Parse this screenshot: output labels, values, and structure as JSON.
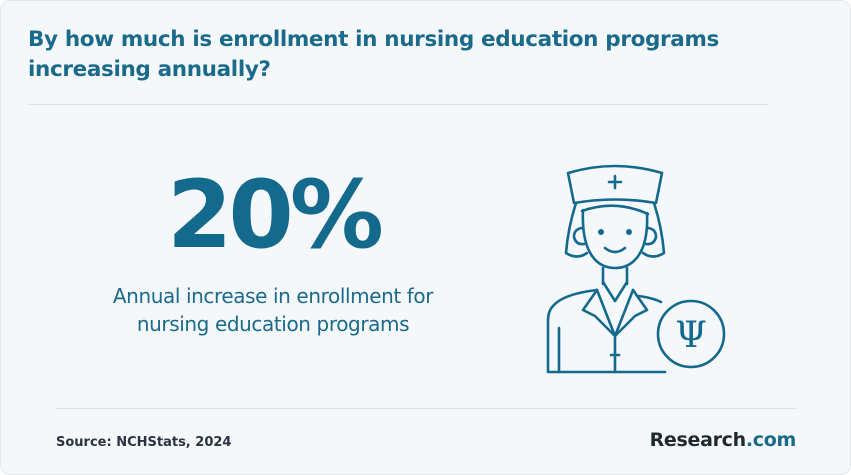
{
  "header": {
    "title": "By how much is enrollment in nursing education programs increasing annually?"
  },
  "stat": {
    "value": "20%",
    "caption": "Annual increase in enrollment for nursing education programs"
  },
  "illustration": {
    "icon": "nurse-icon",
    "badge_symbol": "Ψ"
  },
  "footer": {
    "source": "Source: NCHStats, 2024",
    "brand_name": "Research",
    "brand_suffix": ".com"
  },
  "colors": {
    "accent": "#1a6a8a",
    "background": "#f5f8fa",
    "brand_text": "#20292f"
  }
}
